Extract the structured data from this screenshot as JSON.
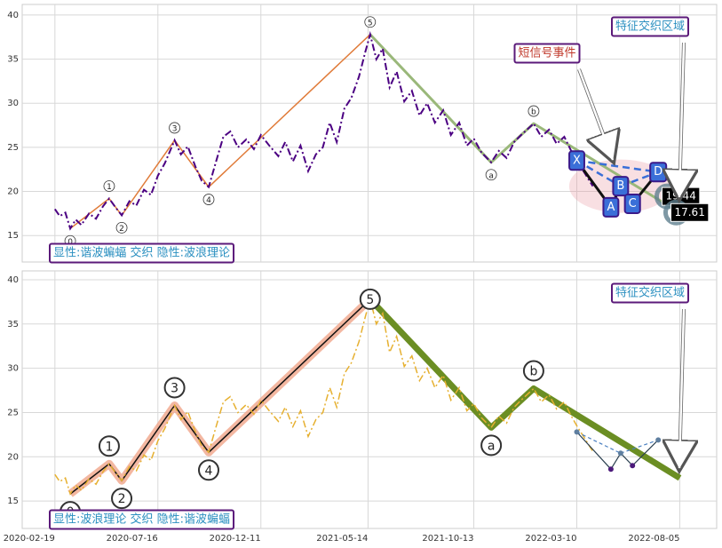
{
  "chart_data": [
    {
      "type": "line",
      "xlim": [
        "2020-01-03",
        "2022-09-27"
      ],
      "ylim": [
        12,
        41.2
      ],
      "xticks": [
        "2020-02-19",
        "2020-07-16",
        "2020-12-11",
        "2021-05-14",
        "2021-10-13",
        "2022-03-10",
        "2022-08-05"
      ],
      "yticks": [
        15,
        20,
        25,
        30,
        35,
        40
      ],
      "grid": true,
      "x": [
        "2020-02-19",
        "2020-02-26",
        "2020-03-05",
        "2020-03-12",
        "2020-03-20",
        "2020-03-28",
        "2020-04-08",
        "2020-04-18",
        "2020-04-28",
        "2020-05-07",
        "2020-05-16",
        "2020-05-25",
        "2020-06-05",
        "2020-06-15",
        "2020-06-26",
        "2020-07-06",
        "2020-07-16",
        "2020-07-26",
        "2020-08-09",
        "2020-08-18",
        "2020-08-28",
        "2020-09-08",
        "2020-09-17",
        "2020-09-27",
        "2020-10-08",
        "2020-10-18",
        "2020-10-28",
        "2020-11-08",
        "2020-11-20",
        "2020-12-01",
        "2020-12-11",
        "2020-12-22",
        "2021-01-05",
        "2021-01-15",
        "2021-01-26",
        "2021-02-06",
        "2021-02-17",
        "2021-02-28",
        "2021-03-10",
        "2021-03-20",
        "2021-03-30",
        "2021-04-10",
        "2021-04-20",
        "2021-05-01",
        "2021-05-10",
        "2021-05-17",
        "2021-05-26",
        "2021-06-04",
        "2021-06-14",
        "2021-06-24",
        "2021-07-05",
        "2021-07-16",
        "2021-07-27",
        "2021-08-07",
        "2021-08-18",
        "2021-08-30",
        "2021-09-10",
        "2021-09-22",
        "2021-10-03",
        "2021-10-13",
        "2021-10-24",
        "2021-11-07",
        "2021-11-18",
        "2021-11-29",
        "2021-12-10",
        "2021-12-20",
        "2022-01-07",
        "2022-01-18",
        "2022-01-29",
        "2022-02-09",
        "2022-02-20",
        "2022-03-02",
        "2022-03-10",
        "2022-03-22",
        "2022-04-02"
      ],
      "series": [
        {
          "color": "#4b0082",
          "values": [
            18.0,
            17.2,
            17.6,
            15.8,
            16.8,
            16.2,
            17.5,
            16.9,
            18.3,
            19.2,
            18.2,
            17.3,
            18.9,
            18.4,
            20.2,
            19.6,
            21.8,
            23.2,
            25.8,
            24.2,
            25.1,
            22.8,
            21.2,
            20.5,
            23.5,
            26.2,
            26.8,
            25.0,
            25.9,
            24.8,
            26.4,
            25.3,
            24.0,
            25.6,
            23.4,
            25.2,
            22.3,
            24.2,
            25.0,
            27.8,
            25.6,
            29.4,
            30.6,
            33.0,
            35.8,
            37.8,
            35.0,
            36.2,
            31.8,
            33.6,
            30.2,
            31.4,
            28.6,
            30.0,
            27.8,
            29.2,
            26.4,
            27.8,
            25.2,
            26.0,
            24.4,
            23.3,
            24.6,
            23.8,
            25.6,
            26.4,
            27.7,
            26.2,
            27.0,
            25.4,
            26.2,
            24.6,
            23.5,
            22.0,
            20.6
          ]
        }
      ],
      "impulse": {
        "labels": [
          "0",
          "1",
          "2",
          "3",
          "4",
          "5"
        ],
        "x": [
          "2020-03-12",
          "2020-05-07",
          "2020-05-25",
          "2020-08-09",
          "2020-09-27",
          "2021-05-17"
        ],
        "values": [
          15.8,
          19.2,
          17.3,
          25.8,
          20.5,
          37.8
        ],
        "color": "#e07b39"
      },
      "correction": {
        "labels": [
          "a",
          "b",
          null
        ],
        "x": [
          "2021-11-07",
          "2022-01-07",
          "2022-08-05"
        ],
        "values": [
          23.3,
          27.7,
          17.6
        ],
        "color": "#9ab87a"
      },
      "harmonic": {
        "labels": [
          "X",
          "A",
          "B",
          "C",
          "D"
        ],
        "x": [
          "2022-03-10",
          "2022-04-28",
          "2022-05-12",
          "2022-05-29",
          "2022-07-05"
        ],
        "values": [
          23.5,
          18.2,
          20.6,
          18.6,
          22.2
        ],
        "color": "#3a6fd8"
      },
      "price_labels": {
        "x": [
          "2022-08-05",
          "2022-08-05"
        ],
        "values": [
          19.44,
          17.61
        ]
      },
      "annotations": [
        "短信号事件",
        "特征交织区域"
      ],
      "label_box": "显性:谐波蝙蝠 交织 隐性:波浪理论"
    },
    {
      "type": "line",
      "xlim": [
        "2020-01-03",
        "2022-09-27"
      ],
      "ylim": [
        11.9,
        41
      ],
      "xticks": [
        "2020-02-19",
        "2020-07-16",
        "2020-12-11",
        "2021-05-14",
        "2021-10-13",
        "2022-03-10",
        "2022-08-05"
      ],
      "yticks": [
        15,
        20,
        25,
        30,
        35,
        40
      ],
      "grid": true,
      "x": [
        "2020-02-19",
        "2020-02-26",
        "2020-03-05",
        "2020-03-12",
        "2020-03-20",
        "2020-03-28",
        "2020-04-08",
        "2020-04-18",
        "2020-04-28",
        "2020-05-07",
        "2020-05-16",
        "2020-05-25",
        "2020-06-05",
        "2020-06-15",
        "2020-06-26",
        "2020-07-06",
        "2020-07-16",
        "2020-07-26",
        "2020-08-09",
        "2020-08-18",
        "2020-08-28",
        "2020-09-08",
        "2020-09-17",
        "2020-09-27",
        "2020-10-08",
        "2020-10-18",
        "2020-10-28",
        "2020-11-08",
        "2020-11-20",
        "2020-12-01",
        "2020-12-11",
        "2020-12-22",
        "2021-01-05",
        "2021-01-15",
        "2021-01-26",
        "2021-02-06",
        "2021-02-17",
        "2021-02-28",
        "2021-03-10",
        "2021-03-20",
        "2021-03-30",
        "2021-04-10",
        "2021-04-20",
        "2021-05-01",
        "2021-05-10",
        "2021-05-17",
        "2021-05-26",
        "2021-06-04",
        "2021-06-14",
        "2021-06-24",
        "2021-07-05",
        "2021-07-16",
        "2021-07-27",
        "2021-08-07",
        "2021-08-18",
        "2021-08-30",
        "2021-09-10",
        "2021-09-22",
        "2021-10-03",
        "2021-10-13",
        "2021-10-24",
        "2021-11-07",
        "2021-11-18",
        "2021-11-29",
        "2021-12-10",
        "2021-12-20",
        "2022-01-07",
        "2022-01-18",
        "2022-01-29",
        "2022-02-09",
        "2022-02-20",
        "2022-03-02",
        "2022-03-10",
        "2022-03-22",
        "2022-04-02"
      ],
      "series": [
        {
          "color": "#e6b030",
          "values": [
            18.0,
            17.2,
            17.6,
            15.8,
            16.8,
            16.2,
            17.5,
            16.9,
            18.3,
            19.2,
            18.2,
            17.3,
            18.9,
            18.4,
            20.2,
            19.6,
            21.8,
            23.2,
            25.8,
            24.2,
            25.1,
            22.8,
            21.2,
            20.5,
            23.5,
            26.2,
            26.8,
            25.0,
            25.9,
            24.8,
            26.4,
            25.3,
            24.0,
            25.6,
            23.4,
            25.2,
            22.3,
            24.2,
            25.0,
            27.8,
            25.6,
            29.4,
            30.6,
            33.0,
            35.8,
            37.8,
            35.0,
            36.2,
            31.8,
            33.6,
            30.2,
            31.4,
            28.6,
            30.0,
            27.8,
            29.2,
            26.4,
            27.8,
            25.2,
            26.0,
            24.4,
            23.3,
            24.6,
            23.8,
            25.6,
            26.4,
            27.7,
            26.2,
            27.0,
            25.4,
            26.2,
            24.6,
            23.5,
            22.0,
            20.6
          ]
        }
      ],
      "impulse": {
        "labels": [
          "0",
          "1",
          "2",
          "3",
          "4",
          "5"
        ],
        "x": [
          "2020-03-12",
          "2020-05-07",
          "2020-05-25",
          "2020-08-09",
          "2020-09-27",
          "2021-05-17"
        ],
        "values": [
          15.8,
          19.2,
          17.3,
          25.8,
          20.5,
          37.8
        ],
        "color": "#f0a58a"
      },
      "correction": {
        "labels": [
          "a",
          "b",
          null
        ],
        "x": [
          "2021-11-07",
          "2022-01-07",
          "2022-08-05"
        ],
        "values": [
          23.3,
          27.7,
          17.6
        ],
        "color": "#6b8e23"
      },
      "harmonic": {
        "x": [
          "2022-03-10",
          "2022-04-28",
          "2022-05-12",
          "2022-05-29",
          "2022-07-05"
        ],
        "values": [
          22.8,
          18.6,
          20.4,
          19.0,
          21.9
        ],
        "color": "#4a7fc0"
      },
      "annotations": [
        "特征交织区域"
      ],
      "label_box": "显性:波浪理论 交织 隐性:谐波蝙蝠"
    }
  ]
}
